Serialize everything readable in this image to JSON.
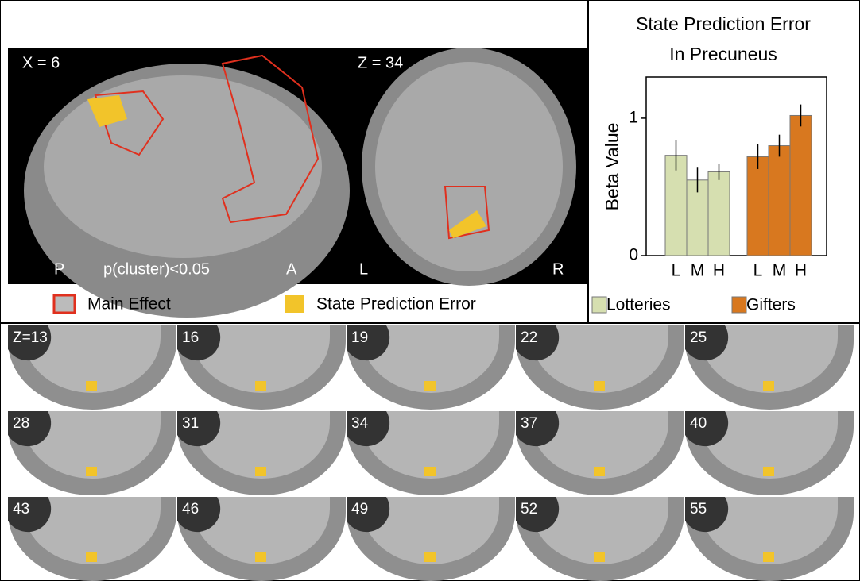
{
  "figure": {
    "sagittal": {
      "label": "X = 6",
      "posterior": "P",
      "threshold": "p(cluster)<0.05",
      "anterior": "A"
    },
    "axial": {
      "label": "Z = 34",
      "left": "L",
      "right": "R"
    },
    "legend": {
      "main": "Main Effect",
      "spe": "State Prediction Error"
    },
    "slices": [
      "Z=13",
      "16",
      "19",
      "22",
      "25",
      "28",
      "31",
      "34",
      "37",
      "40",
      "43",
      "46",
      "49",
      "52",
      "55"
    ]
  },
  "chart_data": {
    "type": "bar",
    "title": [
      "State Prediction Error",
      "In Precuneus"
    ],
    "y_label": "Beta Value",
    "categories": [
      "L",
      "M",
      "H"
    ],
    "series": [
      {
        "name": "Lotteries",
        "color": "#d6dfb0",
        "values": [
          0.73,
          0.55,
          0.61
        ],
        "errors": [
          0.11,
          0.09,
          0.06
        ]
      },
      {
        "name": "Gifters",
        "color": "#d8781f",
        "values": [
          0.72,
          0.8,
          1.02
        ],
        "errors": [
          0.09,
          0.08,
          0.08
        ]
      }
    ],
    "ylim": [
      0,
      1.3
    ],
    "yticks": [
      0,
      1
    ]
  }
}
